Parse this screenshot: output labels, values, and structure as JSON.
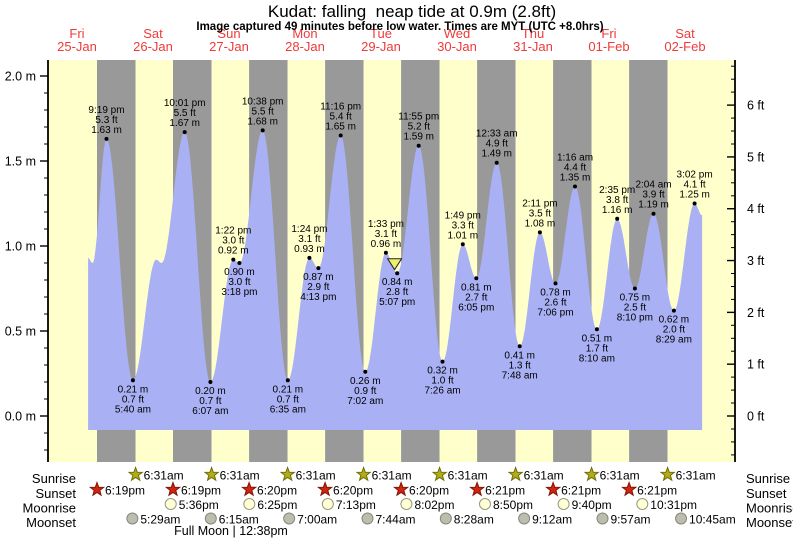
{
  "title": "Kudat: falling  neap tide at 0.9m (2.8ft)",
  "subtitle": "Image captured 49 minutes before low water. Times are MYT (UTC +8.0hrs)",
  "colors": {
    "day_band": "#ffffcc",
    "night_band": "#999999",
    "tide_fill": "#a9b1f4",
    "date_red": "#ee3a3a",
    "axis": "#000000",
    "sunrise_fill": "#b3ab1e",
    "sunrise_stroke": "#6f6f00",
    "sunset_fill": "#d42310",
    "sunset_stroke": "#7c1606",
    "moonrise_fill": "#ffffd8",
    "moonrise_stroke": "#999977",
    "moonset_fill": "#bdbdaf",
    "moonset_stroke": "#88887a",
    "marker_fill": "#f0ee6e",
    "marker_stroke": "#222222"
  },
  "chart_data": {
    "type": "area",
    "title": "Kudat: falling  neap tide at 0.9m (2.8ft)",
    "unit_left": "m",
    "unit_right": "ft",
    "ylim_m": [
      -0.27,
      2.09
    ],
    "y_ticks_m": [
      {
        "v": 0.0,
        "label": "0.0 m"
      },
      {
        "v": 0.5,
        "label": "0.5 m"
      },
      {
        "v": 1.0,
        "label": "1.0 m"
      },
      {
        "v": 1.5,
        "label": "1.5 m"
      },
      {
        "v": 2.0,
        "label": "2.0 m"
      }
    ],
    "y_ticks_ft": [
      {
        "v": 0,
        "label": "0 ft"
      },
      {
        "v": 1,
        "label": "1 ft"
      },
      {
        "v": 2,
        "label": "2 ft"
      },
      {
        "v": 3,
        "label": "3 ft"
      },
      {
        "v": 4,
        "label": "4 ft"
      },
      {
        "v": 5,
        "label": "5 ft"
      },
      {
        "v": 6,
        "label": "6 ft"
      }
    ],
    "days": [
      {
        "dow": "Fri",
        "date": "25-Jan"
      },
      {
        "dow": "Sat",
        "date": "26-Jan"
      },
      {
        "dow": "Sun",
        "date": "27-Jan"
      },
      {
        "dow": "Mon",
        "date": "28-Jan"
      },
      {
        "dow": "Tue",
        "date": "29-Jan"
      },
      {
        "dow": "Wed",
        "date": "30-Jan"
      },
      {
        "dow": "Thu",
        "date": "31-Jan"
      },
      {
        "dow": "Fri",
        "date": "01-Feb"
      },
      {
        "dow": "Sat",
        "date": "02-Feb"
      }
    ],
    "tide_events": [
      {
        "day": 0,
        "t": 15.5,
        "h": 0.93,
        "hidden": true
      },
      {
        "day": 0,
        "t": 16.9,
        "h": 0.9,
        "hidden": true
      },
      {
        "day": 0,
        "type": "high",
        "time": "9:19 pm",
        "ft": "5.3 ft",
        "m": "1.63 m",
        "h": 1.63
      },
      {
        "day": 1,
        "type": "low",
        "time": "5:40 am",
        "m": "0.21 m",
        "ft": "0.7 ft",
        "h": 0.21
      },
      {
        "day": 1,
        "t": 13.0,
        "h": 0.92,
        "hidden": true
      },
      {
        "day": 1,
        "t": 14.7,
        "h": 0.9,
        "hidden": true
      },
      {
        "day": 1,
        "type": "high",
        "time": "10:01 pm",
        "ft": "5.5 ft",
        "m": "1.67 m",
        "h": 1.67
      },
      {
        "day": 2,
        "type": "low",
        "time": "6:07 am",
        "m": "0.20 m",
        "ft": "0.7 ft",
        "h": 0.2
      },
      {
        "day": 2,
        "type": "high",
        "time": "1:22 pm",
        "ft": "3.0 ft",
        "m": "0.92 m",
        "h": 0.92
      },
      {
        "day": 2,
        "type": "low",
        "time": "3:18 pm",
        "m": "0.90 m",
        "ft": "3.0 ft",
        "h": 0.9
      },
      {
        "day": 2,
        "type": "high",
        "time": "10:38 pm",
        "ft": "5.5 ft",
        "m": "1.68 m",
        "h": 1.68
      },
      {
        "day": 3,
        "type": "low",
        "time": "6:35 am",
        "m": "0.21 m",
        "ft": "0.7 ft",
        "h": 0.21
      },
      {
        "day": 3,
        "type": "high",
        "time": "1:24 pm",
        "ft": "3.1 ft",
        "m": "0.93 m",
        "h": 0.93
      },
      {
        "day": 3,
        "type": "low",
        "time": "4:13 pm",
        "m": "0.87 m",
        "ft": "2.9 ft",
        "h": 0.87
      },
      {
        "day": 3,
        "type": "high",
        "time": "11:16 pm",
        "ft": "5.4 ft",
        "m": "1.65 m",
        "h": 1.65
      },
      {
        "day": 4,
        "type": "low",
        "time": "7:02 am",
        "m": "0.26 m",
        "ft": "0.9 ft",
        "h": 0.26
      },
      {
        "day": 4,
        "type": "high",
        "time": "1:33 pm",
        "ft": "3.1 ft",
        "m": "0.96 m",
        "h": 0.96
      },
      {
        "day": 4,
        "type": "low",
        "time": "5:07 pm",
        "m": "0.84 m",
        "ft": "2.8 ft",
        "h": 0.84
      },
      {
        "day": 4,
        "type": "high",
        "time": "11:55 pm",
        "ft": "5.2 ft",
        "m": "1.59 m",
        "h": 1.59
      },
      {
        "day": 5,
        "type": "low",
        "time": "7:26 am",
        "m": "0.32 m",
        "ft": "1.0 ft",
        "h": 0.32
      },
      {
        "day": 5,
        "type": "high",
        "time": "1:49 pm",
        "ft": "3.3 ft",
        "m": "1.01 m",
        "h": 1.01
      },
      {
        "day": 5,
        "type": "low",
        "time": "6:05 pm",
        "m": "0.81 m",
        "ft": "2.7 ft",
        "h": 0.81
      },
      {
        "day": 6,
        "type": "high",
        "time": "12:33 am",
        "ft": "4.9 ft",
        "m": "1.49 m",
        "h": 1.49
      },
      {
        "day": 6,
        "type": "low",
        "time": "7:48 am",
        "m": "0.41 m",
        "ft": "1.3 ft",
        "h": 0.41
      },
      {
        "day": 6,
        "type": "high",
        "time": "2:11 pm",
        "ft": "3.5 ft",
        "m": "1.08 m",
        "h": 1.08
      },
      {
        "day": 6,
        "type": "low",
        "time": "7:06 pm",
        "m": "0.78 m",
        "ft": "2.6 ft",
        "h": 0.78
      },
      {
        "day": 7,
        "type": "high",
        "time": "1:16 am",
        "ft": "4.4 ft",
        "m": "1.35 m",
        "h": 1.35
      },
      {
        "day": 7,
        "type": "low",
        "time": "8:10 am",
        "m": "0.51 m",
        "ft": "1.7 ft",
        "h": 0.51
      },
      {
        "day": 7,
        "type": "high",
        "time": "2:35 pm",
        "ft": "3.8 ft",
        "m": "1.16 m",
        "h": 1.16
      },
      {
        "day": 7,
        "type": "low",
        "time": "8:10 pm",
        "m": "0.75 m",
        "ft": "2.5 ft",
        "h": 0.75
      },
      {
        "day": 8,
        "type": "high",
        "time": "2:04 am",
        "ft": "3.9 ft",
        "m": "1.19 m",
        "h": 1.19
      },
      {
        "day": 8,
        "type": "low",
        "time": "8:29 am",
        "m": "0.62 m",
        "ft": "2.0 ft",
        "h": 0.62
      },
      {
        "day": 8,
        "type": "high",
        "time": "3:02 pm",
        "ft": "4.1 ft",
        "m": "1.25 m",
        "h": 1.25
      },
      {
        "day": 8,
        "t": 17.4,
        "h": 1.18,
        "hidden": true
      }
    ],
    "current_marker": {
      "day": 4,
      "time": "4:18 pm"
    }
  },
  "astro": {
    "rows": [
      {
        "id": "sunrise",
        "label": "Sunrise",
        "icon": "sunrise-star-icon",
        "events": [
          {
            "day": 1,
            "time": "6:31am"
          },
          {
            "day": 2,
            "time": "6:31am"
          },
          {
            "day": 3,
            "time": "6:31am"
          },
          {
            "day": 4,
            "time": "6:31am"
          },
          {
            "day": 5,
            "time": "6:31am"
          },
          {
            "day": 6,
            "time": "6:31am"
          },
          {
            "day": 7,
            "time": "6:31am"
          },
          {
            "day": 8,
            "time": "6:31am"
          }
        ]
      },
      {
        "id": "sunset",
        "label": "Sunset",
        "icon": "sunset-star-icon",
        "events": [
          {
            "day": 0,
            "time": "6:19pm"
          },
          {
            "day": 1,
            "time": "6:19pm"
          },
          {
            "day": 2,
            "time": "6:20pm"
          },
          {
            "day": 3,
            "time": "6:20pm"
          },
          {
            "day": 4,
            "time": "6:20pm"
          },
          {
            "day": 5,
            "time": "6:21pm"
          },
          {
            "day": 6,
            "time": "6:21pm"
          },
          {
            "day": 7,
            "time": "6:21pm"
          }
        ]
      },
      {
        "id": "moonrise",
        "label": "Moonrise",
        "icon": "moonrise-icon",
        "events": [
          {
            "day": 1,
            "time": "5:36pm"
          },
          {
            "day": 2,
            "time": "6:25pm"
          },
          {
            "day": 3,
            "time": "7:13pm"
          },
          {
            "day": 4,
            "time": "8:02pm"
          },
          {
            "day": 5,
            "time": "8:50pm"
          },
          {
            "day": 6,
            "time": "9:40pm"
          },
          {
            "day": 7,
            "time": "10:31pm"
          }
        ]
      },
      {
        "id": "moonset",
        "label": "Moonset",
        "icon": "moonset-icon",
        "events": [
          {
            "day": 1,
            "time": "5:29am"
          },
          {
            "day": 2,
            "time": "6:15am"
          },
          {
            "day": 3,
            "time": "7:00am"
          },
          {
            "day": 4,
            "time": "7:44am"
          },
          {
            "day": 5,
            "time": "8:28am"
          },
          {
            "day": 6,
            "time": "9:12am"
          },
          {
            "day": 7,
            "time": "9:57am"
          },
          {
            "day": 8,
            "time": "10:45am"
          }
        ]
      }
    ],
    "full_moon_label": "Full Moon | 12:38pm",
    "full_moon": {
      "day": 2,
      "time": "12:38pm"
    }
  }
}
